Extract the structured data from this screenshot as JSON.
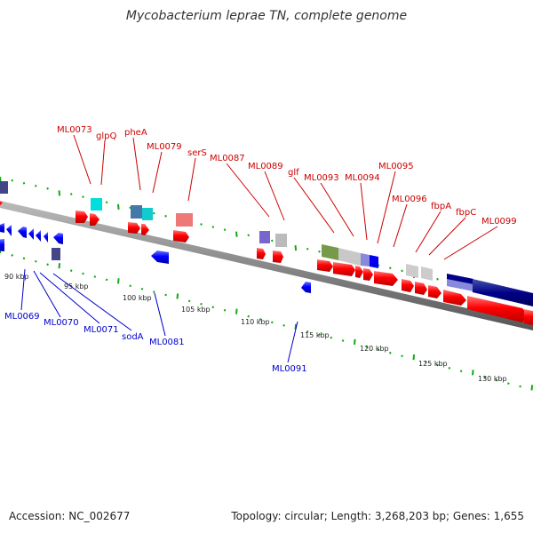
{
  "title": "Mycobacterium leprae TN, complete genome",
  "footer": {
    "accession": "Accession: NC_002677",
    "topology": "Topology: circular; Length: 3,268,203 bp; Genes: 1,655"
  },
  "colors": {
    "forward_label": "#cc0000",
    "reverse_label": "#0000cc",
    "forward_arrow": "#ff0000",
    "reverse_arrow": "#0000ff",
    "tick": "#11aa11",
    "backbone": "#888888"
  },
  "scale_labels": [
    "90 kbp",
    "95 kbp",
    "100 kbp",
    "105 kbp",
    "110 kbp",
    "115 kbp",
    "120 kbp",
    "125 kbp",
    "130 kbp"
  ],
  "forward_gene_labels": [
    "ML0073",
    "glpQ",
    "pheA",
    "ML0079",
    "serS",
    "ML0087",
    "ML0089",
    "glf",
    "ML0093",
    "ML0094",
    "ML0095",
    "ML0096",
    "fbpA",
    "fbpC",
    "ML0099"
  ],
  "reverse_gene_labels": [
    "ML0069",
    "ML0070",
    "ML0071",
    "sodA",
    "ML0081",
    "ML0091"
  ]
}
